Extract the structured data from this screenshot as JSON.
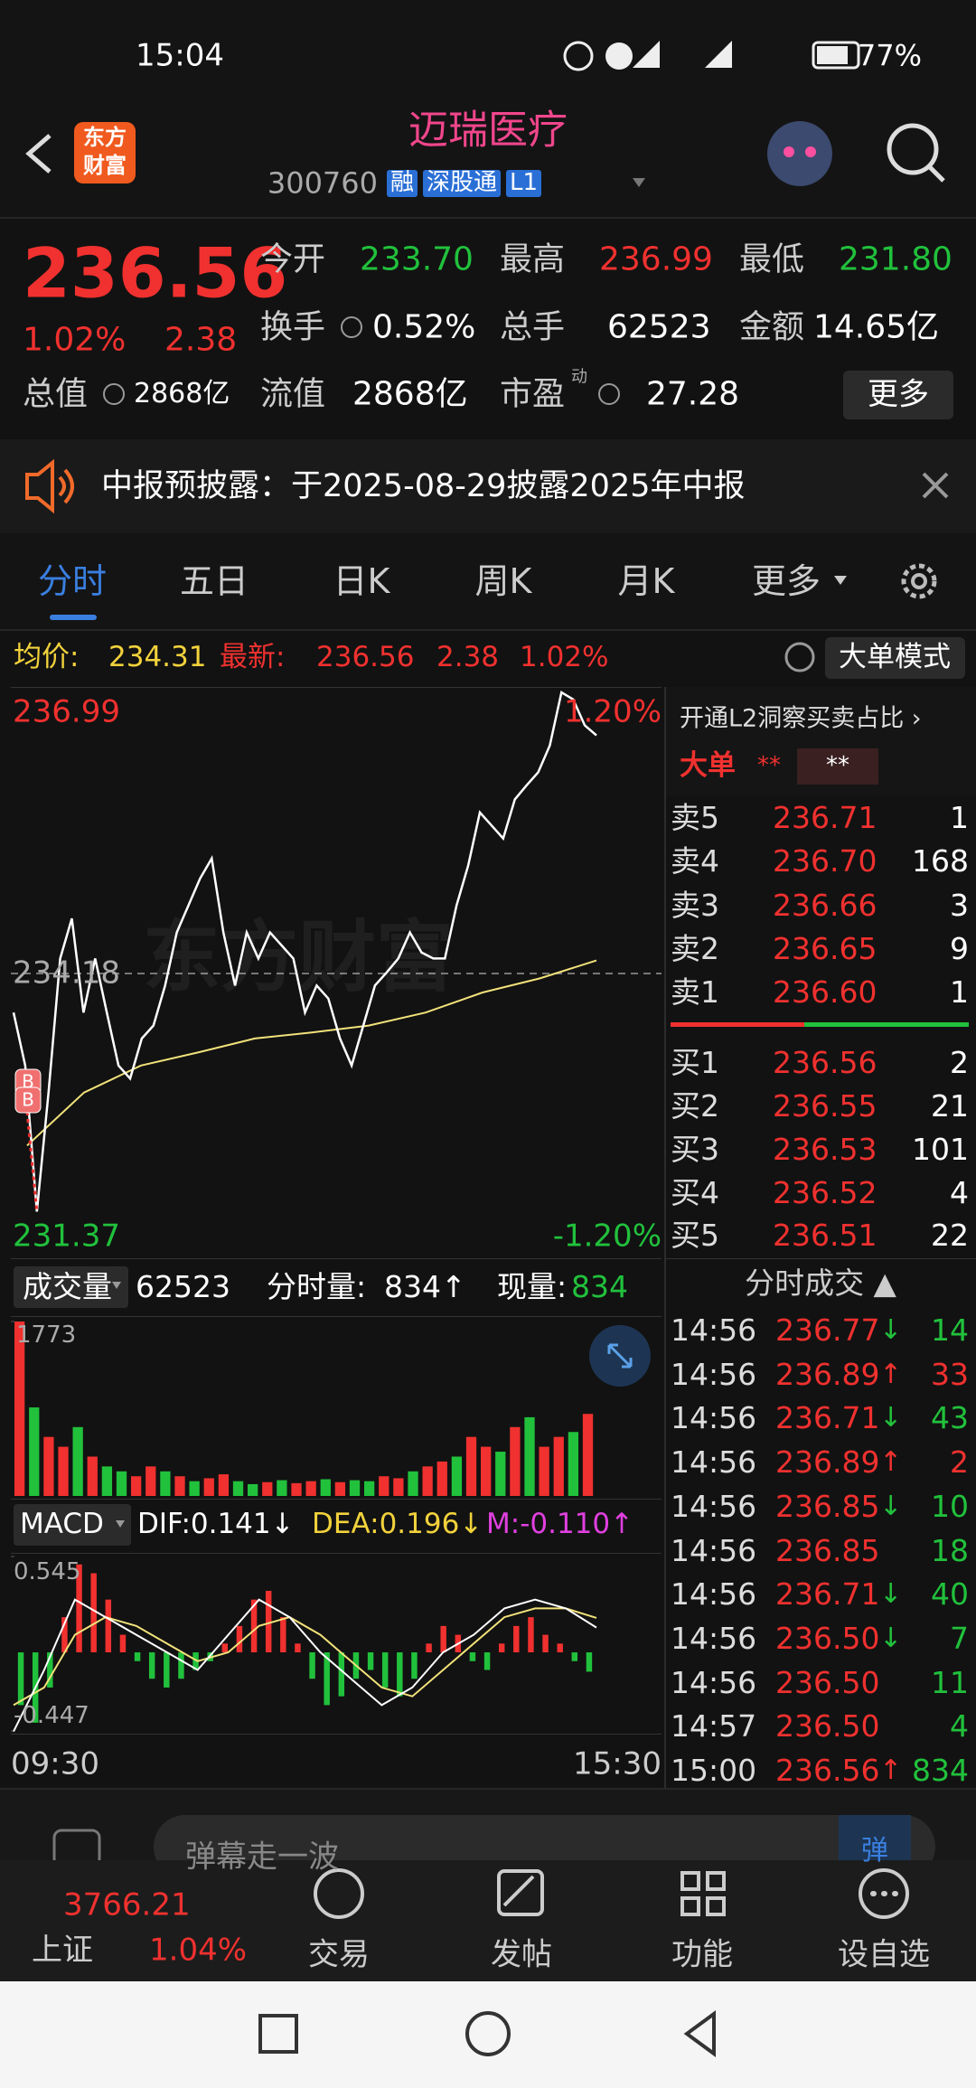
{
  "status": {
    "time": "15:04",
    "battery": "77%"
  },
  "header": {
    "logo": [
      "东方",
      "财富"
    ],
    "title": "迈瑞医疗",
    "code": "300760",
    "badges": [
      "融",
      "深股通",
      "L1"
    ]
  },
  "quote": {
    "price": "236.56",
    "change_pct": "1.02%",
    "change": "2.38",
    "more": "更多",
    "pe_mark": "动",
    "fields": [
      {
        "label": "今开",
        "value": "233.70"
      },
      {
        "label": "最高",
        "value": "236.99"
      },
      {
        "label": "最低",
        "value": "231.80"
      },
      {
        "label": "换手",
        "value": "0.52%"
      },
      {
        "label": "总手",
        "value": "62523"
      },
      {
        "label": "金额",
        "value": "14.65亿"
      },
      {
        "label": "总值",
        "value": "2868亿"
      },
      {
        "label": "流值",
        "value": "2868亿"
      },
      {
        "label": "市盈",
        "value": "27.28"
      }
    ]
  },
  "notice": "中报预披露：于2025-08-29披露2025年中报",
  "tabs": [
    "分时",
    "五日",
    "日K",
    "周K",
    "月K",
    "更多"
  ],
  "info": {
    "avg_label": "均价:",
    "avg": "234.31",
    "latest_label": "最新:",
    "latest": "236.56",
    "change": "2.38",
    "pct": "1.02%",
    "mode": "大单模式"
  },
  "intraday": {
    "ylim": [
      231.37,
      236.99
    ],
    "yticks": [
      231.37,
      234.18,
      236.99
    ],
    "pct_labels": [
      "1.20%",
      "-1.20%"
    ],
    "watermark": "东方财富",
    "markers": [
      "B",
      "B"
    ],
    "price": [
      233.79,
      233.26,
      231.8,
      232.99,
      234.33,
      234.73,
      233.79,
      234.33,
      233.79,
      233.26,
      233.13,
      233.53,
      233.66,
      234.06,
      234.59,
      234.86,
      235.13,
      235.33,
      234.59,
      234.06,
      234.59,
      234.33,
      234.59,
      234.46,
      234.33,
      233.79,
      234.06,
      233.93,
      233.53,
      233.26,
      233.66,
      234.06,
      234.19,
      234.33,
      234.59,
      234.39,
      234.33,
      234.33,
      234.86,
      235.26,
      235.79,
      235.66,
      235.53,
      235.92,
      236.06,
      236.19,
      236.46,
      236.99,
      236.92,
      236.66,
      236.56
    ],
    "price_color": "#ffffff",
    "avg": [
      232.46,
      232.99,
      233.26,
      233.39,
      233.53,
      233.59,
      233.66,
      233.79,
      233.99,
      234.13,
      234.31
    ],
    "avg_color": "#f2e27a"
  },
  "volume": {
    "label": "成交量",
    "total": "62523",
    "minute_label": "分时量:",
    "minute": "834↑",
    "now_label": "现量:",
    "now": "834",
    "ylim": [
      0,
      1773
    ],
    "yticks": [
      1773
    ],
    "up_color": "#f0312f",
    "down_color": "#21c13c",
    "values": [
      1773,
      900,
      600,
      500,
      700,
      400,
      300,
      250,
      200,
      300,
      250,
      200,
      150,
      180,
      220,
      150,
      120,
      140,
      160,
      130,
      150,
      170,
      140,
      160,
      150,
      200,
      180,
      250,
      300,
      350,
      400,
      600,
      500,
      450,
      700,
      800,
      500,
      600,
      650,
      834
    ],
    "up": [
      true,
      false,
      true,
      true,
      false,
      true,
      false,
      false,
      true,
      true,
      false,
      true,
      false,
      true,
      true,
      false,
      false,
      true,
      false,
      true,
      true,
      false,
      true,
      false,
      false,
      true,
      true,
      false,
      true,
      true,
      false,
      true,
      true,
      false,
      true,
      false,
      true,
      true,
      false,
      true
    ]
  },
  "macd": {
    "label": "MACD",
    "dif_label": "DIF:0.141↓",
    "dea_label": "DEA:0.196↓",
    "m_label": "M:-0.110↑",
    "ylim": [
      -0.447,
      0.545
    ],
    "yticks": [
      -0.447,
      0.545
    ],
    "hist": [
      -0.3,
      -0.4,
      -0.2,
      0.2,
      0.5,
      0.45,
      0.3,
      0.1,
      -0.05,
      -0.15,
      -0.2,
      -0.15,
      -0.1,
      -0.05,
      0.05,
      0.15,
      0.3,
      0.35,
      0.2,
      0.05,
      -0.15,
      -0.3,
      -0.25,
      -0.15,
      -0.1,
      -0.2,
      -0.25,
      -0.15,
      0.05,
      0.15,
      0.1,
      -0.05,
      -0.1,
      0.05,
      0.15,
      0.2,
      0.1,
      0.05,
      -0.05,
      -0.11
    ],
    "dif": [
      -0.45,
      -0.1,
      0.3,
      0.2,
      0.1,
      0.0,
      -0.1,
      0.1,
      0.3,
      0.2,
      0.0,
      -0.15,
      -0.3,
      -0.2,
      0.0,
      0.1,
      0.25,
      0.3,
      0.25,
      0.141
    ],
    "dea": [
      -0.3,
      -0.2,
      0.1,
      0.2,
      0.15,
      0.05,
      -0.05,
      0.0,
      0.15,
      0.2,
      0.1,
      -0.05,
      -0.2,
      -0.25,
      -0.1,
      0.05,
      0.2,
      0.25,
      0.25,
      0.196
    ],
    "dif_color": "#ffffff",
    "dea_color": "#f2e27a",
    "pos_color": "#f0312f",
    "neg_color": "#21c13c"
  },
  "time_labels": [
    "09:30",
    "15:30"
  ],
  "orderbook": {
    "title": "开通L2洞察买卖占比 ›",
    "big": "大单",
    "stars": [
      "**",
      "**"
    ],
    "asks": [
      {
        "label": "卖5",
        "price": "236.71",
        "vol": "1"
      },
      {
        "label": "卖4",
        "price": "236.70",
        "vol": "168"
      },
      {
        "label": "卖3",
        "price": "236.66",
        "vol": "3"
      },
      {
        "label": "卖2",
        "price": "236.65",
        "vol": "9"
      },
      {
        "label": "卖1",
        "price": "236.60",
        "vol": "1"
      }
    ],
    "bids": [
      {
        "label": "买1",
        "price": "236.56",
        "vol": "2"
      },
      {
        "label": "买2",
        "price": "236.55",
        "vol": "21"
      },
      {
        "label": "买3",
        "price": "236.53",
        "vol": "101"
      },
      {
        "label": "买4",
        "price": "236.52",
        "vol": "4"
      },
      {
        "label": "买5",
        "price": "236.51",
        "vol": "22"
      }
    ]
  },
  "trades": {
    "title": "分时成交 ▲",
    "rows": [
      {
        "time": "14:56",
        "price": "236.77",
        "dir": "↓",
        "vol": "14"
      },
      {
        "time": "14:56",
        "price": "236.89",
        "dir": "↑",
        "vol": "33"
      },
      {
        "time": "14:56",
        "price": "236.71",
        "dir": "↓",
        "vol": "43"
      },
      {
        "time": "14:56",
        "price": "236.89",
        "dir": "↑",
        "vol": "2"
      },
      {
        "time": "14:56",
        "price": "236.85",
        "dir": "↓",
        "vol": "10"
      },
      {
        "time": "14:56",
        "price": "236.85",
        "vol": "18"
      },
      {
        "time": "14:56",
        "price": "236.71",
        "dir": "↓",
        "vol": "40"
      },
      {
        "time": "14:56",
        "price": "236.50",
        "dir": "↓",
        "vol": "7"
      },
      {
        "time": "14:56",
        "price": "236.50",
        "vol": "11"
      },
      {
        "time": "14:57",
        "price": "236.50",
        "vol": "4"
      },
      {
        "time": "15:00",
        "price": "236.56",
        "dir": "↑",
        "vol": "834"
      }
    ]
  },
  "input": {
    "placeholder": "弹幕走一波",
    "send": "弹"
  },
  "index": {
    "value": "3766.21",
    "name": "上证",
    "pct": "1.04%"
  },
  "nav": [
    "交易",
    "发帖",
    "功能",
    "设自选"
  ]
}
